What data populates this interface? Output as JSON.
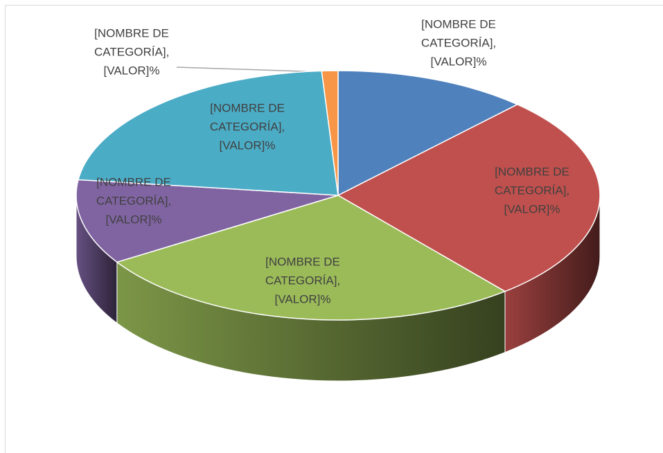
{
  "chart_data": {
    "type": "pie3d",
    "values": [
      12,
      27,
      27,
      11,
      22,
      1
    ],
    "value_labels": [
      "[NOMBRE DE CATEGORÍA], [VALOR]%",
      "[NOMBRE DE CATEGORÍA], [VALOR]%",
      "[NOMBRE DE CATEGORÍA], [VALOR]%",
      "[NOMBRE DE CATEGORÍA], [VALOR]%",
      "[NOMBRE DE CATEGORÍA], [VALOR]%",
      "[NOMBRE DE CATEGORÍA], [VALOR]%"
    ],
    "colors": [
      "#4f81bd",
      "#c0504d",
      "#9bbb59",
      "#8064a2",
      "#4bacc6",
      "#f79646"
    ]
  }
}
